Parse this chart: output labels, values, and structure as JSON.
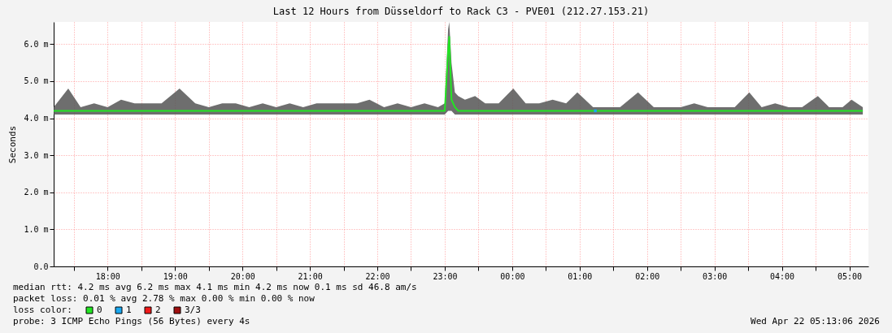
{
  "chart_data": {
    "type": "line",
    "title": "Last 12 Hours from Düsseldorf to Rack C3 - PVE01 (212.27.153.21)",
    "ylabel": "Seconds",
    "legend_title": "loss color:",
    "legend": "bottom left",
    "grid": true,
    "x": [
      "2026-04-21T17:12",
      "2026-04-21T17:25",
      "2026-04-21T17:36",
      "2026-04-21T17:48",
      "2026-04-21T18:00",
      "2026-04-21T18:12",
      "2026-04-21T18:24",
      "2026-04-21T18:36",
      "2026-04-21T18:48",
      "2026-04-21T19:04",
      "2026-04-21T19:18",
      "2026-04-21T19:30",
      "2026-04-21T19:42",
      "2026-04-21T19:54",
      "2026-04-21T20:06",
      "2026-04-21T20:18",
      "2026-04-21T20:30",
      "2026-04-21T20:42",
      "2026-04-21T20:54",
      "2026-04-21T21:06",
      "2026-04-21T21:18",
      "2026-04-21T21:30",
      "2026-04-21T21:42",
      "2026-04-21T21:53",
      "2026-04-21T22:06",
      "2026-04-21T22:18",
      "2026-04-21T22:30",
      "2026-04-21T22:42",
      "2026-04-21T22:54",
      "2026-04-21T23:00",
      "2026-04-21T23:03",
      "2026-04-21T23:04",
      "2026-04-21T23:06",
      "2026-04-21T23:09",
      "2026-04-21T23:12",
      "2026-04-21T23:18",
      "2026-04-21T23:27",
      "2026-04-21T23:36",
      "2026-04-21T23:48",
      "2026-04-22T00:01",
      "2026-04-22T00:12",
      "2026-04-22T00:24",
      "2026-04-22T00:36",
      "2026-04-22T00:48",
      "2026-04-22T00:58",
      "2026-04-22T01:12",
      "2026-04-22T01:24",
      "2026-04-22T01:36",
      "2026-04-22T01:52",
      "2026-04-22T02:06",
      "2026-04-22T02:18",
      "2026-04-22T02:30",
      "2026-04-22T02:42",
      "2026-04-22T02:54",
      "2026-04-22T03:06",
      "2026-04-22T03:18",
      "2026-04-22T03:31",
      "2026-04-22T03:42",
      "2026-04-22T03:54",
      "2026-04-22T04:06",
      "2026-04-22T04:18",
      "2026-04-22T04:32",
      "2026-04-22T04:42",
      "2026-04-22T04:54",
      "2026-04-22T05:02",
      "2026-04-22T05:12"
    ],
    "series": [
      {
        "name": "0",
        "color": "#22e622",
        "values": [
          4.2,
          4.2,
          4.2,
          4.2,
          4.2,
          4.2,
          4.2,
          4.2,
          4.2,
          4.2,
          4.2,
          4.2,
          4.2,
          4.2,
          4.2,
          4.2,
          4.2,
          4.2,
          4.2,
          4.2,
          4.2,
          4.2,
          4.2,
          4.2,
          4.2,
          4.2,
          4.2,
          4.2,
          4.2,
          4.2,
          5.8,
          6.2,
          4.5,
          4.3,
          4.2,
          4.2,
          4.2,
          4.2,
          4.2,
          4.2,
          4.2,
          4.2,
          4.2,
          4.2,
          4.2,
          4.2,
          4.2,
          4.2,
          4.2,
          4.2,
          4.2,
          4.2,
          4.2,
          4.2,
          4.2,
          4.2,
          4.2,
          4.2,
          4.2,
          4.2,
          4.2,
          4.2,
          4.2,
          4.2,
          4.2,
          4.2
        ],
        "lower": [
          4.1,
          4.1,
          4.1,
          4.1,
          4.1,
          4.1,
          4.1,
          4.1,
          4.1,
          4.1,
          4.1,
          4.1,
          4.1,
          4.1,
          4.1,
          4.1,
          4.1,
          4.1,
          4.1,
          4.1,
          4.1,
          4.1,
          4.1,
          4.1,
          4.1,
          4.1,
          4.1,
          4.1,
          4.1,
          4.1,
          4.2,
          4.2,
          4.2,
          4.1,
          4.1,
          4.1,
          4.1,
          4.1,
          4.1,
          4.1,
          4.1,
          4.1,
          4.1,
          4.1,
          4.1,
          4.1,
          4.1,
          4.1,
          4.1,
          4.1,
          4.1,
          4.1,
          4.1,
          4.1,
          4.1,
          4.1,
          4.1,
          4.1,
          4.1,
          4.1,
          4.1,
          4.1,
          4.1,
          4.1,
          4.1,
          4.1
        ],
        "upper": [
          4.3,
          4.8,
          4.3,
          4.4,
          4.3,
          4.5,
          4.4,
          4.4,
          4.4,
          4.8,
          4.4,
          4.3,
          4.4,
          4.4,
          4.3,
          4.4,
          4.3,
          4.4,
          4.3,
          4.4,
          4.4,
          4.4,
          4.4,
          4.5,
          4.3,
          4.4,
          4.3,
          4.4,
          4.3,
          4.4,
          6.4,
          6.6,
          5.5,
          4.7,
          4.6,
          4.5,
          4.6,
          4.4,
          4.4,
          4.8,
          4.4,
          4.4,
          4.5,
          4.4,
          4.7,
          4.3,
          4.3,
          4.3,
          4.7,
          4.3,
          4.3,
          4.3,
          4.4,
          4.3,
          4.3,
          4.3,
          4.7,
          4.3,
          4.4,
          4.3,
          4.3,
          4.6,
          4.3,
          4.3,
          4.5,
          4.3
        ]
      },
      {
        "name": "1",
        "color": "#19a8f0",
        "type": "scatter",
        "marker": "square",
        "x": [
          "2026-04-22T01:14"
        ],
        "values": [
          4.2
        ]
      },
      {
        "name": "2",
        "color": "#f01919",
        "type": "scatter",
        "marker": "square",
        "values": [
          null,
          null,
          null,
          null,
          null,
          null,
          null,
          null,
          null,
          null,
          null,
          null,
          null,
          null,
          null,
          null,
          null,
          null,
          null,
          null,
          null,
          null,
          null,
          null,
          null,
          null,
          null,
          null,
          null,
          null,
          null,
          null,
          null,
          null,
          null,
          null,
          null,
          null,
          null,
          null,
          null,
          null,
          null,
          null,
          null,
          null,
          null,
          null,
          null,
          null,
          null,
          null,
          null,
          null,
          null,
          null,
          null,
          null,
          null,
          null,
          null,
          null,
          null,
          null,
          null,
          null
        ]
      },
      {
        "name": "3/3",
        "color": "#a01010",
        "type": "scatter",
        "marker": "square",
        "values": [
          null,
          null,
          null,
          null,
          null,
          null,
          null,
          null,
          null,
          null,
          null,
          null,
          null,
          null,
          null,
          null,
          null,
          null,
          null,
          null,
          null,
          null,
          null,
          null,
          null,
          null,
          null,
          null,
          null,
          null,
          null,
          null,
          null,
          null,
          null,
          null,
          null,
          null,
          null,
          null,
          null,
          null,
          null,
          null,
          null,
          null,
          null,
          null,
          null,
          null,
          null,
          null,
          null,
          null,
          null,
          null,
          null,
          null,
          null,
          null,
          null,
          null,
          null,
          null,
          null,
          null
        ]
      }
    ],
    "xlim": [
      "2026-04-21T17:12",
      "2026-04-22T05:17"
    ],
    "xticks": [
      {
        "value": "2026-04-21T17:30",
        "label": null
      },
      {
        "value": "2026-04-21T18:00",
        "label": "18:00"
      },
      {
        "value": "2026-04-21T18:30",
        "label": null
      },
      {
        "value": "2026-04-21T19:00",
        "label": "19:00"
      },
      {
        "value": "2026-04-21T19:30",
        "label": null
      },
      {
        "value": "2026-04-21T20:00",
        "label": "20:00"
      },
      {
        "value": "2026-04-21T20:30",
        "label": null
      },
      {
        "value": "2026-04-21T21:00",
        "label": "21:00"
      },
      {
        "value": "2026-04-21T21:30",
        "label": null
      },
      {
        "value": "2026-04-21T22:00",
        "label": "22:00"
      },
      {
        "value": "2026-04-21T22:30",
        "label": null
      },
      {
        "value": "2026-04-21T23:00",
        "label": "23:00"
      },
      {
        "value": "2026-04-21T23:30",
        "label": null
      },
      {
        "value": "2026-04-22T00:00",
        "label": "00:00"
      },
      {
        "value": "2026-04-22T00:30",
        "label": null
      },
      {
        "value": "2026-04-22T01:00",
        "label": "01:00"
      },
      {
        "value": "2026-04-22T01:30",
        "label": null
      },
      {
        "value": "2026-04-22T02:00",
        "label": "02:00"
      },
      {
        "value": "2026-04-22T02:30",
        "label": null
      },
      {
        "value": "2026-04-22T03:00",
        "label": "03:00"
      },
      {
        "value": "2026-04-22T03:30",
        "label": null
      },
      {
        "value": "2026-04-22T04:00",
        "label": "04:00"
      },
      {
        "value": "2026-04-22T04:30",
        "label": null
      },
      {
        "value": "2026-04-22T05:00",
        "label": "05:00"
      }
    ],
    "ylim": [
      0,
      6.6
    ],
    "yticks": [
      {
        "value": 0,
        "label": "0.0"
      },
      {
        "value": 1,
        "label": "1.0 m"
      },
      {
        "value": 2,
        "label": "2.0 m"
      },
      {
        "value": 3,
        "label": "3.0 m"
      },
      {
        "value": 4,
        "label": "4.0 m"
      },
      {
        "value": 5,
        "label": "5.0 m"
      },
      {
        "value": 6,
        "label": "6.0 m"
      }
    ],
    "annotations": [
      "median rtt: 4.2 ms avg 6.2 ms max 4.1 ms min 4.2 ms now 0.1 ms sd 46.8 am/s",
      "packet loss: 0.01 % avg 2.78 % max 0.00 % min 0.00 % now",
      "probe: 3 ICMP Echo Pings (56 Bytes) every 4s",
      "Wed Apr 22 05:13:06 2026"
    ]
  }
}
